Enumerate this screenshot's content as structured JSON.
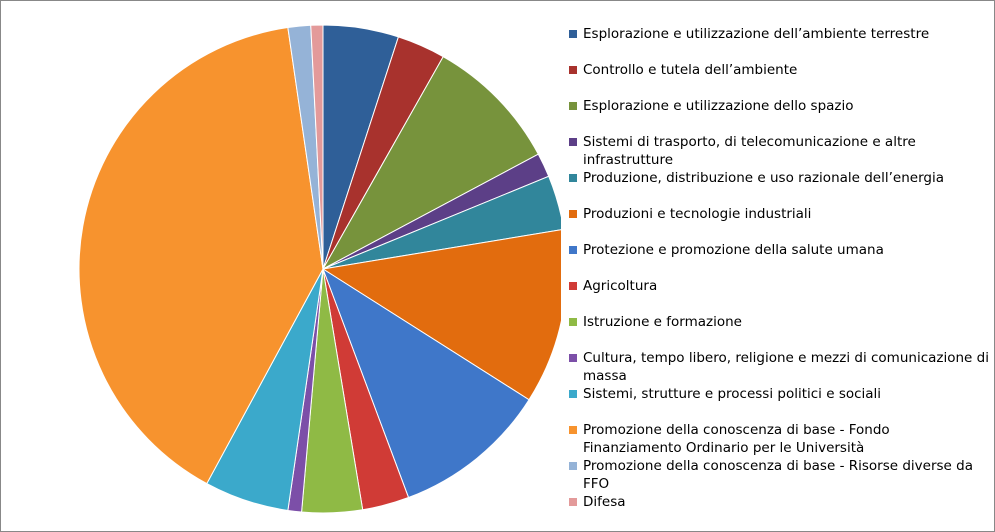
{
  "chart_data": {
    "type": "pie",
    "categories": [
      "Esplorazione e utilizzazione dell’ambiente terrestre",
      "Controllo e tutela dell’ambiente",
      "Esplorazione e utilizzazione dello spazio",
      "Sistemi di trasporto, di telecomunicazione e altre infrastrutture",
      "Produzione, distribuzione e uso razionale dell’energia",
      "Produzioni e tecnologie industriali",
      "Protezione e promozione della salute umana",
      "Agricoltura",
      "Istruzione e formazione",
      "Cultura, tempo libero, religione e mezzi di comunicazione di massa",
      "Sistemi, strutture e processi politici e sociali",
      "Promozione della conoscenza di base - Fondo Finanziamento Ordinario per le Università",
      "Promozione della conoscenza di base - Risorse diverse da FFO",
      "Difesa"
    ],
    "values": [
      5,
      3.2,
      9,
      1.6,
      3.6,
      11.6,
      10.3,
      3.1,
      4,
      0.9,
      5.6,
      39.8,
      1.5,
      0.8
    ],
    "colors": [
      "#2f5f98",
      "#a8322d",
      "#77933c",
      "#5c3f87",
      "#31869b",
      "#e26c0e",
      "#3f77c9",
      "#d03b36",
      "#8fba45",
      "#7c4fa8",
      "#3ba9cb",
      "#f7932e",
      "#95b3d7",
      "#e39a9a"
    ],
    "legend": "right"
  }
}
